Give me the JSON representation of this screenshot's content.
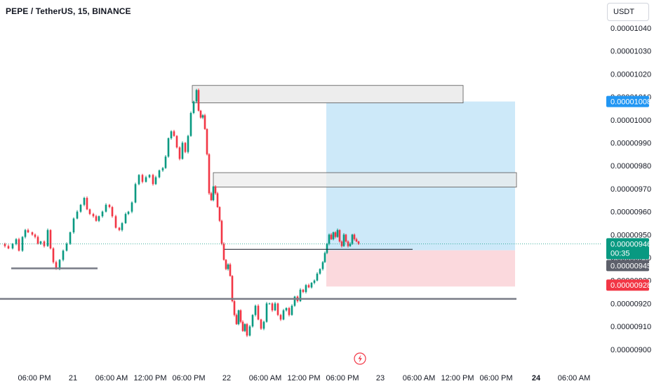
{
  "header": {
    "title": "PEPE / TetherUS, 15, BINANCE",
    "currency": "USDT"
  },
  "colors": {
    "up": "#089981",
    "down": "#f23645",
    "target_zone": "#cde9f9",
    "stop_zone": "#fbd9dd",
    "box_fill": "#ebebeb",
    "box_stroke": "#555555",
    "last_price_tag": "#089981",
    "target_tag": "#2196f3",
    "stop_tag": "#f23645",
    "entry_tag": "#5d606b",
    "support_line": "#787b86"
  },
  "chart_data": {
    "type": "candlestick",
    "y_tick_labels": [
      "0.00001040",
      "0.00001030",
      "0.00001020",
      "0.00001010",
      "0.00001000",
      "0.00000990",
      "0.00000980",
      "0.00000970",
      "0.00000960",
      "0.00000950",
      "0.00000940",
      "0.00000930",
      "0.00000920",
      "0.00000910",
      "0.00000900"
    ],
    "y_ticks": [
      1.04e-05,
      1.03e-05,
      1.02e-05,
      1.01e-05,
      1e-05,
      9.9e-06,
      9.8e-06,
      9.7e-06,
      9.6e-06,
      9.5e-06,
      9.4e-06,
      9.3e-06,
      9.2e-06,
      9.1e-06,
      9e-06
    ],
    "ylim": [
      8.985e-06,
      1.0475e-05
    ],
    "x_tick_labels": [
      "06:00 PM",
      "21",
      "06:00 AM",
      "12:00 PM",
      "06:00 PM",
      "22",
      "06:00 AM",
      "12:00 PM",
      "06:00 PM",
      "23",
      "06:00 AM",
      "12:00 PM",
      "06:00 PM",
      "24",
      "06:00 AM"
    ],
    "bold_x_ticks": [
      "24"
    ],
    "candle_close_path": [
      [
        0,
        9.46e-06
      ],
      [
        7,
        9.45e-06
      ],
      [
        12,
        9.44e-06
      ],
      [
        18,
        9.46e-06
      ],
      [
        23,
        9.48e-06
      ],
      [
        27,
        9.43e-06
      ],
      [
        32,
        9.49e-06
      ],
      [
        36,
        9.52e-06
      ],
      [
        40,
        9.51e-06
      ],
      [
        46,
        9.5e-06
      ],
      [
        50,
        9.49e-06
      ],
      [
        54,
        9.46e-06
      ],
      [
        58,
        9.47e-06
      ],
      [
        63,
        9.45e-06
      ],
      [
        68,
        9.52e-06
      ],
      [
        72,
        9.44e-06
      ],
      [
        76,
        9.38e-06
      ],
      [
        80,
        9.35e-06
      ],
      [
        85,
        9.39e-06
      ],
      [
        90,
        9.43e-06
      ],
      [
        95,
        9.46e-06
      ],
      [
        100,
        9.51e-06
      ],
      [
        105,
        9.57e-06
      ],
      [
        110,
        9.6e-06
      ],
      [
        115,
        9.63e-06
      ],
      [
        120,
        9.66e-06
      ],
      [
        124,
        9.61e-06
      ],
      [
        128,
        9.59e-06
      ],
      [
        133,
        9.58e-06
      ],
      [
        137,
        9.56e-06
      ],
      [
        141,
        9.58e-06
      ],
      [
        146,
        9.6e-06
      ],
      [
        151,
        9.63e-06
      ],
      [
        156,
        9.62e-06
      ],
      [
        160,
        9.58e-06
      ],
      [
        165,
        9.53e-06
      ],
      [
        170,
        9.52e-06
      ],
      [
        174,
        9.55e-06
      ],
      [
        179,
        9.59e-06
      ],
      [
        183,
        9.6e-06
      ],
      [
        188,
        9.64e-06
      ],
      [
        193,
        9.72e-06
      ],
      [
        198,
        9.76e-06
      ],
      [
        203,
        9.73e-06
      ],
      [
        208,
        9.75e-06
      ],
      [
        213,
        9.76e-06
      ],
      [
        218,
        9.72e-06
      ],
      [
        222,
        9.75e-06
      ],
      [
        227,
        9.78e-06
      ],
      [
        232,
        9.79e-06
      ],
      [
        236,
        9.84e-06
      ],
      [
        240,
        9.92e-06
      ],
      [
        244,
        9.95e-06
      ],
      [
        248,
        9.93e-06
      ],
      [
        252,
        9.88e-06
      ],
      [
        256,
        9.83e-06
      ],
      [
        260,
        9.9e-06
      ],
      [
        264,
        9.86e-06
      ],
      [
        268,
        9.93e-06
      ],
      [
        272,
        1.003e-05
      ],
      [
        276,
        1.008e-05
      ],
      [
        280,
        1.013e-05
      ],
      [
        283,
        1.004e-05
      ],
      [
        286,
        1.001e-05
      ],
      [
        289,
        1.002e-05
      ],
      [
        292,
        9.96e-06
      ],
      [
        295,
        9.85e-06
      ],
      [
        298,
        9.68e-06
      ],
      [
        301,
        9.65e-06
      ],
      [
        304,
        9.71e-06
      ],
      [
        307,
        9.68e-06
      ],
      [
        310,
        9.62e-06
      ],
      [
        313,
        9.56e-06
      ],
      [
        316,
        9.46e-06
      ],
      [
        319,
        9.39e-06
      ],
      [
        322,
        9.35e-06
      ],
      [
        325,
        9.37e-06
      ],
      [
        328,
        9.32e-06
      ],
      [
        331,
        9.21e-06
      ],
      [
        334,
        9.15e-06
      ],
      [
        337,
        9.11e-06
      ],
      [
        340,
        9.17e-06
      ],
      [
        343,
        9.12e-06
      ],
      [
        346,
        9.08e-06
      ],
      [
        349,
        9.11e-06
      ],
      [
        352,
        9.06e-06
      ],
      [
        356,
        9.1e-06
      ],
      [
        360,
        9.15e-06
      ],
      [
        364,
        9.19e-06
      ],
      [
        368,
        9.13e-06
      ],
      [
        372,
        9.09e-06
      ],
      [
        376,
        9.12e-06
      ],
      [
        380,
        9.2e-06
      ],
      [
        384,
        9.2e-06
      ],
      [
        388,
        9.17e-06
      ],
      [
        392,
        9.2e-06
      ],
      [
        396,
        9.15e-06
      ],
      [
        400,
        9.13e-06
      ],
      [
        404,
        9.17e-06
      ],
      [
        408,
        9.18e-06
      ],
      [
        412,
        9.15e-06
      ],
      [
        416,
        9.19e-06
      ],
      [
        420,
        9.23e-06
      ],
      [
        424,
        9.21e-06
      ],
      [
        428,
        9.26e-06
      ],
      [
        432,
        9.25e-06
      ],
      [
        436,
        9.28e-06
      ],
      [
        440,
        9.27e-06
      ],
      [
        444,
        9.29e-06
      ],
      [
        448,
        9.3e-06
      ],
      [
        452,
        9.33e-06
      ],
      [
        456,
        9.35e-06
      ],
      [
        460,
        9.38e-06
      ],
      [
        463,
        9.42e-06
      ],
      [
        466,
        9.46e-06
      ],
      [
        469,
        9.5e-06
      ],
      [
        472,
        9.48e-06
      ],
      [
        475,
        9.51e-06
      ],
      [
        478,
        9.49e-06
      ],
      [
        481,
        9.52e-06
      ],
      [
        484,
        9.47e-06
      ],
      [
        487,
        9.45e-06
      ],
      [
        490,
        9.5e-06
      ],
      [
        493,
        9.47e-06
      ],
      [
        496,
        9.45e-06
      ],
      [
        499,
        9.46e-06
      ],
      [
        502,
        9.5e-06
      ],
      [
        505,
        9.48e-06
      ],
      [
        508,
        9.47e-06
      ],
      [
        511,
        9.46e-06
      ]
    ],
    "last_price": 9.46e-06,
    "last_price_label": "0.00000946",
    "countdown": "00:35",
    "target_price": 1.008e-05,
    "target_label": "0.00001008",
    "entry_price": 9.45e-06,
    "entry_label": "0.00000945",
    "stop_price": 9.28e-06,
    "stop_label": "0.00000928",
    "zones": {
      "resistance_top": {
        "price_high": 1.015e-05,
        "price_low": 1.008e-05
      },
      "resistance_mid": {
        "price_high": 9.77e-06,
        "price_low": 9.71e-06
      }
    },
    "support_levels": [
      9.353e-06,
      9.22e-06,
      9.445e-06
    ]
  }
}
